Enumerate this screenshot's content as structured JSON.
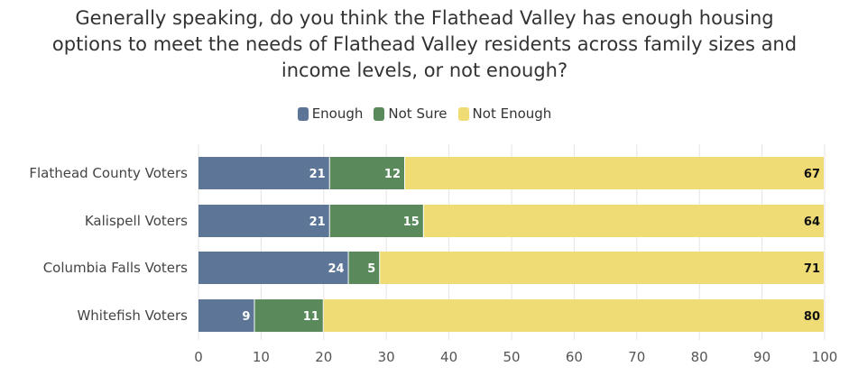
{
  "title_lines": [
    "Generally speaking, do you think the Flathead Valley has enough housing",
    "options to meet the needs of Flathead Valley residents across family sizes and",
    "income levels, or not enough?"
  ],
  "colors": {
    "Enough": "#5d7596",
    "Not Sure": "#5a8a5c",
    "Not Enough": "#f0dc74"
  },
  "chart_data": {
    "type": "bar",
    "orientation": "horizontal",
    "stacked": true,
    "title": "Generally speaking, do you think the Flathead Valley has enough housing options to meet the needs of Flathead Valley residents across family sizes and income levels, or not enough?",
    "categories": [
      "Flathead County Voters",
      "Kalispell Voters",
      "Columbia Falls Voters",
      "Whitefish Voters"
    ],
    "series": [
      {
        "name": "Enough",
        "values": [
          21,
          21,
          24,
          9
        ]
      },
      {
        "name": "Not Sure",
        "values": [
          12,
          15,
          5,
          11
        ]
      },
      {
        "name": "Not Enough",
        "values": [
          67,
          64,
          71,
          80
        ]
      }
    ],
    "xlim": [
      0,
      100
    ],
    "xticks": [
      0,
      10,
      20,
      30,
      40,
      50,
      60,
      70,
      80,
      90,
      100
    ],
    "legend_position": "top",
    "grid": true,
    "xlabel": "",
    "ylabel": ""
  }
}
